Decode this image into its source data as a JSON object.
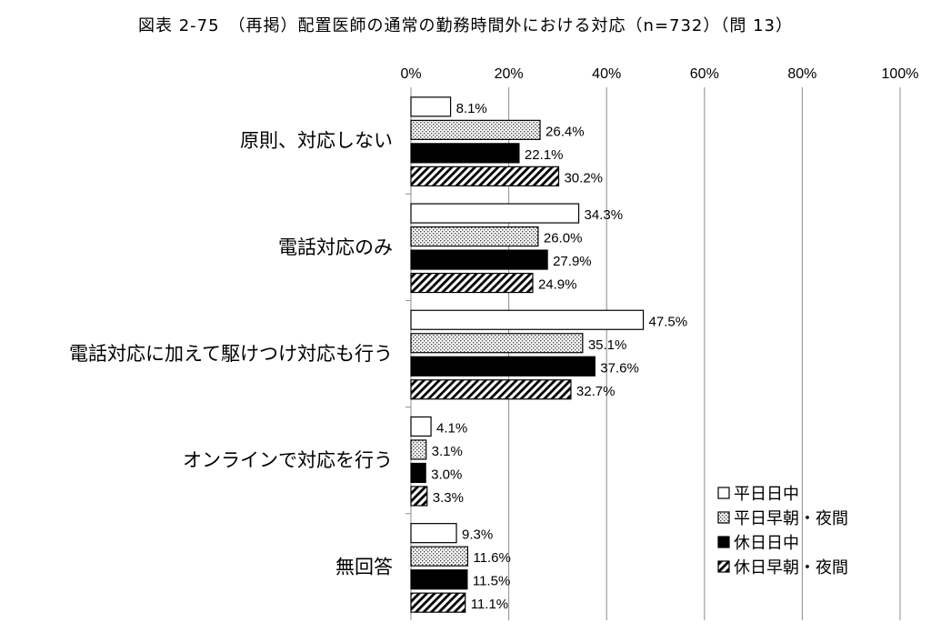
{
  "title": "図表 2-75　（再掲）配置医師の通常の勤務時間外における対応（n=732）（問 13）",
  "chart_data": {
    "type": "bar",
    "orientation": "horizontal",
    "n": 732,
    "categories": [
      "原則、対応しない",
      "電話対応のみ",
      "電話対応に加えて駆けつけ対応も行う",
      "オンラインで対応を行う",
      "無回答"
    ],
    "series": [
      {
        "name": "平日日中",
        "values": [
          8.1,
          34.3,
          47.5,
          4.1,
          9.3
        ],
        "fill": "white"
      },
      {
        "name": "平日早朝・夜間",
        "values": [
          26.4,
          26.0,
          35.1,
          3.1,
          11.6
        ],
        "fill": "dotted"
      },
      {
        "name": "休日日中",
        "values": [
          22.1,
          27.9,
          37.6,
          3.0,
          11.5
        ],
        "fill": "black"
      },
      {
        "name": "休日早朝・夜間",
        "values": [
          30.2,
          24.9,
          32.7,
          3.3,
          11.1
        ],
        "fill": "diagonal-hatch"
      }
    ],
    "xlim": [
      0,
      100
    ],
    "xticks": [
      "0%",
      "20%",
      "40%",
      "60%",
      "80%",
      "100%"
    ],
    "value_suffix": "%",
    "grid": true,
    "legend_position": "bottom-right"
  }
}
